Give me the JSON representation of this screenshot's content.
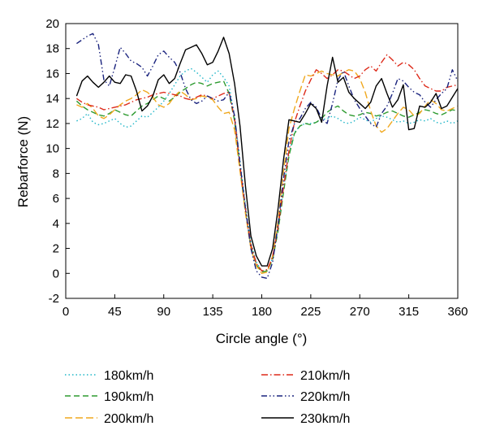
{
  "chart_data": {
    "type": "line",
    "title": "",
    "xlabel": "Circle angle (°)",
    "ylabel": "Rebarforce (N)",
    "xlim": [
      0,
      360
    ],
    "ylim": [
      -2,
      20
    ],
    "xticks": [
      0,
      45,
      90,
      135,
      180,
      225,
      270,
      315,
      360
    ],
    "yticks": [
      -2,
      0,
      2,
      4,
      6,
      8,
      10,
      12,
      14,
      16,
      18,
      20
    ],
    "grid": false,
    "legend_position": "bottom",
    "x": [
      10,
      15,
      20,
      25,
      30,
      35,
      40,
      45,
      50,
      55,
      60,
      65,
      70,
      75,
      80,
      85,
      90,
      95,
      100,
      105,
      110,
      115,
      120,
      125,
      130,
      135,
      140,
      145,
      150,
      155,
      160,
      165,
      170,
      175,
      180,
      185,
      190,
      195,
      200,
      205,
      210,
      215,
      220,
      225,
      230,
      235,
      240,
      245,
      250,
      255,
      260,
      265,
      270,
      275,
      280,
      285,
      290,
      295,
      300,
      305,
      310,
      315,
      320,
      325,
      330,
      335,
      340,
      345,
      350,
      355,
      360
    ],
    "series": [
      {
        "name": "180km/h",
        "color": "#1fb6c8",
        "dash": "1.5 3",
        "values": [
          12.2,
          12.4,
          12.8,
          12.1,
          11.9,
          12.0,
          12.2,
          12.4,
          12.0,
          11.7,
          11.8,
          12.2,
          12.6,
          12.5,
          12.9,
          13.3,
          13.8,
          14.4,
          15.1,
          15.8,
          16.2,
          16.4,
          16.1,
          15.7,
          15.3,
          15.9,
          16.2,
          15.7,
          15.0,
          12.6,
          9.0,
          5.5,
          2.5,
          0.9,
          0.2,
          0.3,
          1.2,
          3.6,
          6.8,
          9.6,
          11.3,
          11.8,
          12.0,
          12.0,
          12.1,
          12.3,
          12.4,
          12.6,
          12.4,
          12.1,
          12.0,
          12.2,
          12.5,
          12.3,
          12.1,
          12.4,
          12.6,
          12.5,
          12.3,
          12.1,
          12.2,
          12.0,
          12.1,
          12.3,
          12.2,
          12.4,
          12.1,
          12.0,
          12.2,
          12.0,
          12.2
        ]
      },
      {
        "name": "190km/h",
        "color": "#2e9b30",
        "dash": "7 4",
        "values": [
          13.8,
          13.4,
          13.1,
          12.9,
          12.7,
          12.6,
          12.8,
          13.1,
          12.9,
          12.7,
          12.6,
          13.0,
          13.4,
          13.6,
          13.9,
          14.2,
          14.0,
          13.8,
          14.1,
          14.5,
          14.8,
          15.1,
          15.3,
          15.2,
          15.0,
          15.2,
          15.3,
          15.4,
          14.4,
          12.2,
          8.4,
          5.0,
          2.1,
          0.7,
          0.1,
          0.2,
          1.1,
          3.4,
          6.5,
          9.4,
          11.2,
          11.8,
          12.0,
          11.9,
          12.1,
          12.4,
          12.9,
          13.2,
          13.4,
          13.0,
          12.7,
          12.6,
          12.7,
          12.9,
          12.8,
          12.6,
          12.7,
          12.9,
          13.0,
          12.8,
          12.6,
          12.5,
          12.7,
          12.9,
          13.1,
          13.0,
          12.8,
          12.7,
          12.9,
          13.1,
          13.0
        ]
      },
      {
        "name": "200km/h",
        "color": "#f0a81e",
        "dash": "9 4",
        "values": [
          13.5,
          13.3,
          13.6,
          13.2,
          12.6,
          12.4,
          12.7,
          13.1,
          13.5,
          13.8,
          14.0,
          14.3,
          14.7,
          14.5,
          14.1,
          13.5,
          13.3,
          13.6,
          14.2,
          14.6,
          14.3,
          13.9,
          14.0,
          14.2,
          14.1,
          13.9,
          13.3,
          12.8,
          12.9,
          11.5,
          8.2,
          4.8,
          2.0,
          0.6,
          0.0,
          0.1,
          1.4,
          4.2,
          8.1,
          11.6,
          13.2,
          14.6,
          15.9,
          15.8,
          16.0,
          16.2,
          16.0,
          15.9,
          15.8,
          16.1,
          16.3,
          16.2,
          15.6,
          14.5,
          13.0,
          11.8,
          11.3,
          11.6,
          12.2,
          12.8,
          13.3,
          13.1,
          12.6,
          12.8,
          13.4,
          13.9,
          13.6,
          13.1,
          13.0,
          13.2,
          13.4
        ]
      },
      {
        "name": "210km/h",
        "color": "#dd2a1a",
        "dash": "8 3 1.5 3",
        "values": [
          14.0,
          13.7,
          13.5,
          13.4,
          13.3,
          13.1,
          13.2,
          13.3,
          13.4,
          13.5,
          13.7,
          13.9,
          14.0,
          14.1,
          14.3,
          14.4,
          14.5,
          14.4,
          14.3,
          14.2,
          14.0,
          13.9,
          14.1,
          14.3,
          14.2,
          14.0,
          14.2,
          14.4,
          14.5,
          12.4,
          8.6,
          5.2,
          2.3,
          0.8,
          0.2,
          0.3,
          1.3,
          3.7,
          6.9,
          9.8,
          12.1,
          13.4,
          14.6,
          15.5,
          16.3,
          16.0,
          15.6,
          15.9,
          16.3,
          16.2,
          15.9,
          15.6,
          15.8,
          16.3,
          16.6,
          16.2,
          16.9,
          17.5,
          17.1,
          16.6,
          16.9,
          16.7,
          16.3,
          15.6,
          15.0,
          14.8,
          14.6,
          14.6,
          14.9,
          15.0,
          15.1
        ]
      },
      {
        "name": "220km/h",
        "color": "#1a237e",
        "dash": "7 3 1.5 3 1.5 3",
        "values": [
          18.4,
          18.7,
          19.0,
          19.2,
          18.3,
          15.5,
          15.0,
          16.5,
          18.1,
          17.6,
          17.0,
          16.8,
          16.5,
          15.8,
          16.6,
          17.5,
          17.8,
          17.3,
          16.9,
          16.1,
          14.8,
          13.9,
          13.6,
          13.8,
          14.2,
          14.0,
          13.8,
          13.9,
          14.5,
          12.6,
          8.8,
          5.2,
          2.0,
          0.2,
          -0.3,
          -0.4,
          0.9,
          3.9,
          7.6,
          10.6,
          12.0,
          12.4,
          13.2,
          13.7,
          13.3,
          12.4,
          12.0,
          13.6,
          15.5,
          16.2,
          15.0,
          13.9,
          13.2,
          12.6,
          12.0,
          11.7,
          12.8,
          13.4,
          14.4,
          15.6,
          15.4,
          14.9,
          14.5,
          14.3,
          13.7,
          13.3,
          13.9,
          14.4,
          14.8,
          16.3,
          15.4
        ]
      },
      {
        "name": "230km/h",
        "color": "#000000",
        "dash": "",
        "values": [
          14.2,
          15.4,
          15.8,
          15.3,
          14.9,
          15.3,
          15.8,
          15.3,
          15.2,
          15.9,
          15.8,
          14.6,
          13.0,
          13.4,
          14.2,
          15.5,
          15.9,
          15.2,
          15.6,
          16.8,
          17.9,
          18.1,
          18.3,
          17.6,
          16.7,
          16.9,
          17.8,
          18.9,
          17.6,
          15.2,
          11.8,
          7.0,
          3.0,
          1.4,
          0.6,
          0.6,
          2.0,
          5.2,
          9.1,
          12.3,
          12.2,
          12.1,
          12.8,
          13.6,
          13.2,
          12.1,
          15.0,
          17.3,
          15.3,
          15.7,
          14.5,
          14.0,
          13.6,
          13.2,
          13.7,
          15.0,
          15.6,
          14.4,
          13.3,
          13.9,
          15.1,
          11.5,
          11.6,
          13.4,
          13.3,
          13.7,
          14.4,
          13.2,
          13.4,
          14.1,
          14.8
        ]
      }
    ]
  }
}
